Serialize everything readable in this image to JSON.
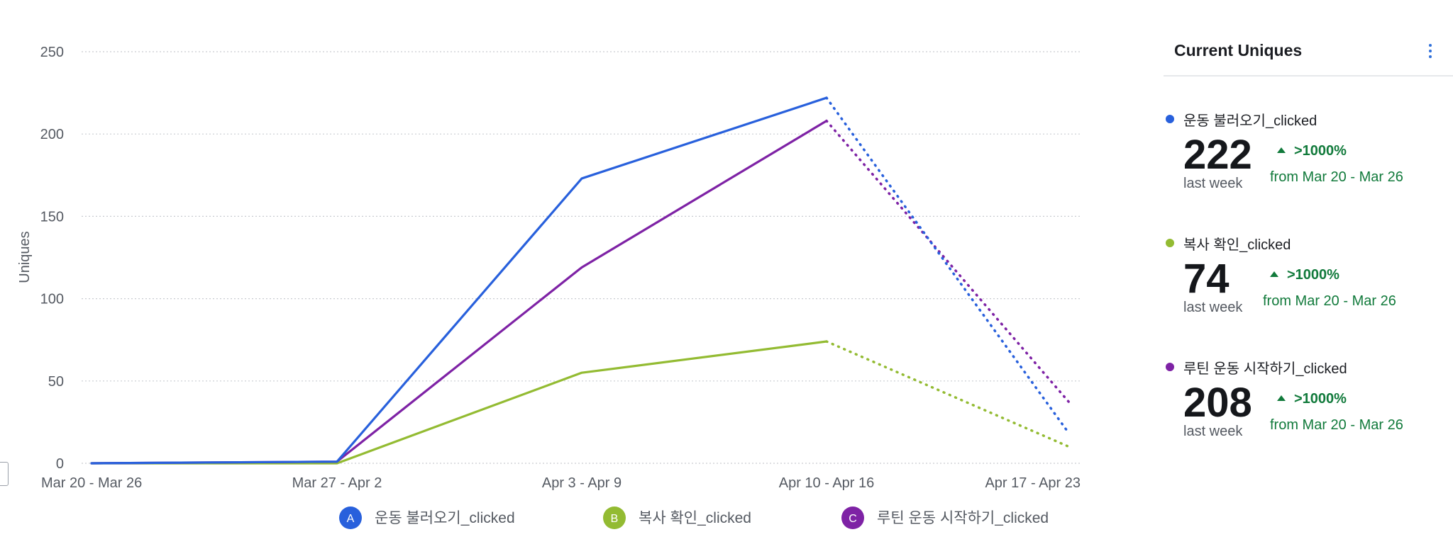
{
  "colors": {
    "blue": "#2860dc",
    "green": "#93bb32",
    "purple": "#7e22a5",
    "grid": "#c9ccd1",
    "positive": "#117a3b"
  },
  "chart_data": {
    "type": "line",
    "ylabel": "Uniques",
    "xlabel": "",
    "title": "",
    "categories": [
      "Mar 20 - Mar 26",
      "Mar 27 - Apr 2",
      "Apr 3 - Apr 9",
      "Apr 10 - Apr 16",
      "Apr 17 - Apr 23"
    ],
    "ylim": [
      0,
      250
    ],
    "yticks": [
      0,
      50,
      100,
      150,
      200,
      250
    ],
    "grid": true,
    "incomplete_last_period": true,
    "legend_position": "bottom",
    "series": [
      {
        "letter": "A",
        "name": "운동 불러오기_clicked",
        "color": "#2860dc",
        "values": [
          0,
          1,
          173,
          222,
          18
        ]
      },
      {
        "letter": "B",
        "name": "복사 확인_clicked",
        "color": "#93bb32",
        "values": [
          0,
          0,
          55,
          74,
          10
        ]
      },
      {
        "letter": "C",
        "name": "루틴 운동 시작하기_clicked",
        "color": "#7e22a5",
        "values": [
          0,
          1,
          119,
          208,
          37
        ]
      }
    ]
  },
  "panel": {
    "title": "Current Uniques",
    "menu_icon": "kebab-menu-icon",
    "metrics": [
      {
        "name": "운동 불러오기_clicked",
        "color": "#2860dc",
        "value": "222",
        "sub": "last week",
        "change": ">1000%",
        "from": "from Mar 20 - Mar 26"
      },
      {
        "name": "복사 확인_clicked",
        "color": "#93bb32",
        "value": "74",
        "sub": "last week",
        "change": ">1000%",
        "from": "from Mar 20 - Mar 26"
      },
      {
        "name": "루틴 운동 시작하기_clicked",
        "color": "#7e22a5",
        "value": "208",
        "sub": "last week",
        "change": ">1000%",
        "from": "from Mar 20 - Mar 26"
      }
    ]
  }
}
